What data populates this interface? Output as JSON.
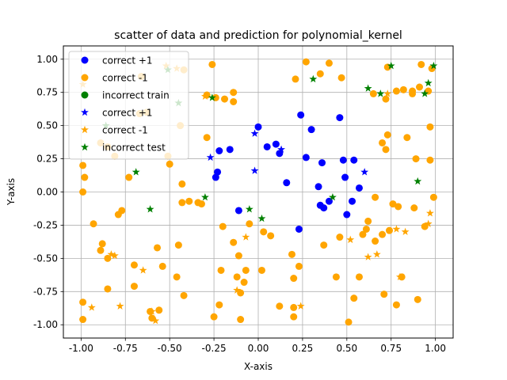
{
  "chart_data": {
    "type": "scatter",
    "title": "scatter of data and prediction for polynomial_kernel",
    "xlabel": "X-axis",
    "ylabel": "Y-axis",
    "xlim": [
      -1.1,
      1.1
    ],
    "ylim": [
      -1.1,
      1.1
    ],
    "xticks": [
      "-1.00",
      "-0.75",
      "-0.50",
      "-0.25",
      "0.00",
      "0.25",
      "0.50",
      "0.75",
      "1.00"
    ],
    "yticks": [
      "-1.00",
      "-0.75",
      "-0.50",
      "-0.25",
      "0.00",
      "0.25",
      "0.50",
      "0.75",
      "1.00"
    ],
    "grid": true,
    "legend_position": "top-left",
    "series": [
      {
        "name": "correct +1",
        "marker": "circle",
        "color": "#0000ff",
        "points": [
          [
            -0.24,
            0.11
          ],
          [
            -0.22,
            0.31
          ],
          [
            -0.23,
            0.15
          ],
          [
            -0.16,
            0.32
          ],
          [
            -0.11,
            -0.14
          ],
          [
            0.0,
            0.49
          ],
          [
            0.05,
            0.34
          ],
          [
            0.1,
            0.36
          ],
          [
            0.12,
            0.29
          ],
          [
            0.16,
            0.07
          ],
          [
            0.24,
            0.58
          ],
          [
            0.3,
            0.47
          ],
          [
            0.27,
            0.26
          ],
          [
            0.34,
            0.04
          ],
          [
            0.35,
            -0.1
          ],
          [
            0.37,
            -0.12
          ],
          [
            0.36,
            0.22
          ],
          [
            0.4,
            -0.07
          ],
          [
            0.46,
            0.56
          ],
          [
            0.48,
            0.24
          ],
          [
            0.49,
            0.11
          ],
          [
            0.5,
            -0.17
          ],
          [
            0.53,
            -0.07
          ],
          [
            0.54,
            0.24
          ],
          [
            0.57,
            0.03
          ],
          [
            0.23,
            -0.28
          ]
        ]
      },
      {
        "name": "correct -1",
        "marker": "circle",
        "color": "#ffa500",
        "points": [
          [
            -0.99,
            0.2
          ],
          [
            -0.98,
            0.11
          ],
          [
            -0.99,
            0.0
          ],
          [
            -0.99,
            -0.83
          ],
          [
            -0.99,
            -0.96
          ],
          [
            -0.93,
            -0.24
          ],
          [
            -0.89,
            -0.44
          ],
          [
            -0.88,
            -0.39
          ],
          [
            -0.85,
            -0.5
          ],
          [
            -0.85,
            -0.73
          ],
          [
            -0.89,
            0.37
          ],
          [
            -0.85,
            0.34
          ],
          [
            -0.81,
            0.27
          ],
          [
            -0.79,
            -0.17
          ],
          [
            -0.77,
            -0.14
          ],
          [
            -0.73,
            0.11
          ],
          [
            -0.7,
            -0.55
          ],
          [
            -0.7,
            -0.71
          ],
          [
            -0.66,
            0.87
          ],
          [
            -0.67,
            0.59
          ],
          [
            -0.63,
            0.6
          ],
          [
            -0.6,
            -0.95
          ],
          [
            -0.61,
            -0.9
          ],
          [
            -0.57,
            -0.42
          ],
          [
            -0.56,
            -0.89
          ],
          [
            -0.54,
            -0.56
          ],
          [
            -0.51,
            0.27
          ],
          [
            -0.5,
            0.21
          ],
          [
            -0.46,
            -0.64
          ],
          [
            -0.45,
            -0.4
          ],
          [
            -0.44,
            0.5
          ],
          [
            -0.43,
            0.06
          ],
          [
            -0.43,
            -0.08
          ],
          [
            -0.42,
            -0.78
          ],
          [
            -0.42,
            0.92
          ],
          [
            -0.39,
            -0.07
          ],
          [
            -0.34,
            -0.08
          ],
          [
            -0.32,
            -0.09
          ],
          [
            -0.29,
            0.73
          ],
          [
            -0.29,
            0.41
          ],
          [
            -0.26,
            0.96
          ],
          [
            -0.25,
            -0.94
          ],
          [
            -0.24,
            0.71
          ],
          [
            -0.22,
            -0.85
          ],
          [
            -0.21,
            -0.59
          ],
          [
            -0.2,
            -0.26
          ],
          [
            -0.19,
            0.7
          ],
          [
            -0.14,
            0.75
          ],
          [
            -0.14,
            0.68
          ],
          [
            -0.14,
            -0.38
          ],
          [
            -0.12,
            -0.64
          ],
          [
            -0.11,
            -0.48
          ],
          [
            -0.1,
            -0.96
          ],
          [
            -0.1,
            -0.76
          ],
          [
            -0.08,
            -0.68
          ],
          [
            -0.07,
            -0.59
          ],
          [
            -0.05,
            -0.24
          ],
          [
            0.02,
            -0.59
          ],
          [
            0.03,
            -0.3
          ],
          [
            0.07,
            -0.33
          ],
          [
            0.12,
            -0.86
          ],
          [
            0.19,
            -0.47
          ],
          [
            0.2,
            -0.65
          ],
          [
            0.2,
            -0.87
          ],
          [
            0.2,
            -0.94
          ],
          [
            0.23,
            -0.56
          ],
          [
            0.21,
            0.85
          ],
          [
            0.27,
            0.98
          ],
          [
            0.35,
            0.89
          ],
          [
            0.37,
            -0.4
          ],
          [
            0.4,
            0.97
          ],
          [
            0.44,
            -0.64
          ],
          [
            0.46,
            -0.34
          ],
          [
            0.47,
            0.86
          ],
          [
            0.51,
            -0.98
          ],
          [
            0.54,
            -0.8
          ],
          [
            0.57,
            -0.64
          ],
          [
            0.59,
            -0.32
          ],
          [
            0.61,
            -0.28
          ],
          [
            0.62,
            -0.22
          ],
          [
            0.65,
            0.74
          ],
          [
            0.66,
            -0.37
          ],
          [
            0.66,
            -0.04
          ],
          [
            0.7,
            -0.32
          ],
          [
            0.7,
            0.37
          ],
          [
            0.71,
            -0.77
          ],
          [
            0.73,
            0.94
          ],
          [
            0.72,
            0.7
          ],
          [
            0.72,
            0.32
          ],
          [
            0.73,
            0.43
          ],
          [
            0.74,
            -0.29
          ],
          [
            0.76,
            -0.09
          ],
          [
            0.78,
            0.76
          ],
          [
            0.78,
            -0.85
          ],
          [
            0.79,
            -0.11
          ],
          [
            0.81,
            -0.64
          ],
          [
            0.82,
            0.77
          ],
          [
            0.84,
            0.41
          ],
          [
            0.87,
            0.76
          ],
          [
            0.87,
            0.74
          ],
          [
            0.88,
            -0.12
          ],
          [
            0.89,
            0.25
          ],
          [
            0.9,
            -0.81
          ],
          [
            0.91,
            0.79
          ],
          [
            0.92,
            0.96
          ],
          [
            0.94,
            -0.26
          ],
          [
            0.96,
            0.76
          ],
          [
            0.97,
            0.24
          ],
          [
            0.97,
            0.49
          ],
          [
            0.98,
            0.93
          ],
          [
            0.99,
            -0.04
          ]
        ]
      },
      {
        "name": "incorrect train",
        "marker": "circle",
        "color": "#008000",
        "points": []
      },
      {
        "name": "correct +1",
        "marker": "star",
        "color": "#0000ff",
        "points": [
          [
            -0.27,
            0.26
          ],
          [
            -0.02,
            0.44
          ],
          [
            -0.02,
            0.16
          ],
          [
            0.13,
            0.32
          ],
          [
            0.6,
            0.15
          ]
        ]
      },
      {
        "name": "correct -1",
        "marker": "star",
        "color": "#ffa500",
        "points": [
          [
            -0.99,
            0.81
          ],
          [
            -0.94,
            -0.87
          ],
          [
            -0.81,
            -0.48
          ],
          [
            -0.83,
            -0.47
          ],
          [
            -0.78,
            -0.86
          ],
          [
            -0.65,
            -0.59
          ],
          [
            -0.6,
            -0.9
          ],
          [
            -0.58,
            -0.97
          ],
          [
            -0.52,
            0.95
          ],
          [
            -0.46,
            0.93
          ],
          [
            -0.3,
            0.72
          ],
          [
            -0.12,
            -0.74
          ],
          [
            -0.07,
            -0.34
          ],
          [
            0.24,
            -0.86
          ],
          [
            0.52,
            -0.36
          ],
          [
            0.62,
            -0.49
          ],
          [
            0.67,
            -0.47
          ],
          [
            0.73,
            0.74
          ],
          [
            0.78,
            -0.28
          ],
          [
            0.8,
            -0.64
          ],
          [
            0.83,
            -0.3
          ],
          [
            0.96,
            -0.24
          ],
          [
            0.97,
            -0.16
          ]
        ]
      },
      {
        "name": "incorrect test",
        "marker": "star",
        "color": "#008000",
        "points": [
          [
            -0.86,
            0.5
          ],
          [
            -0.69,
            0.15
          ],
          [
            -0.61,
            -0.13
          ],
          [
            -0.51,
            0.92
          ],
          [
            -0.45,
            0.67
          ],
          [
            -0.3,
            -0.04
          ],
          [
            -0.26,
            0.71
          ],
          [
            -0.05,
            -0.13
          ],
          [
            0.02,
            -0.2
          ],
          [
            0.31,
            0.85
          ],
          [
            0.42,
            -0.04
          ],
          [
            0.62,
            0.78
          ],
          [
            0.69,
            0.74
          ],
          [
            0.75,
            0.95
          ],
          [
            0.9,
            0.08
          ],
          [
            0.94,
            0.74
          ],
          [
            0.96,
            0.82
          ],
          [
            0.99,
            0.95
          ]
        ]
      }
    ]
  }
}
